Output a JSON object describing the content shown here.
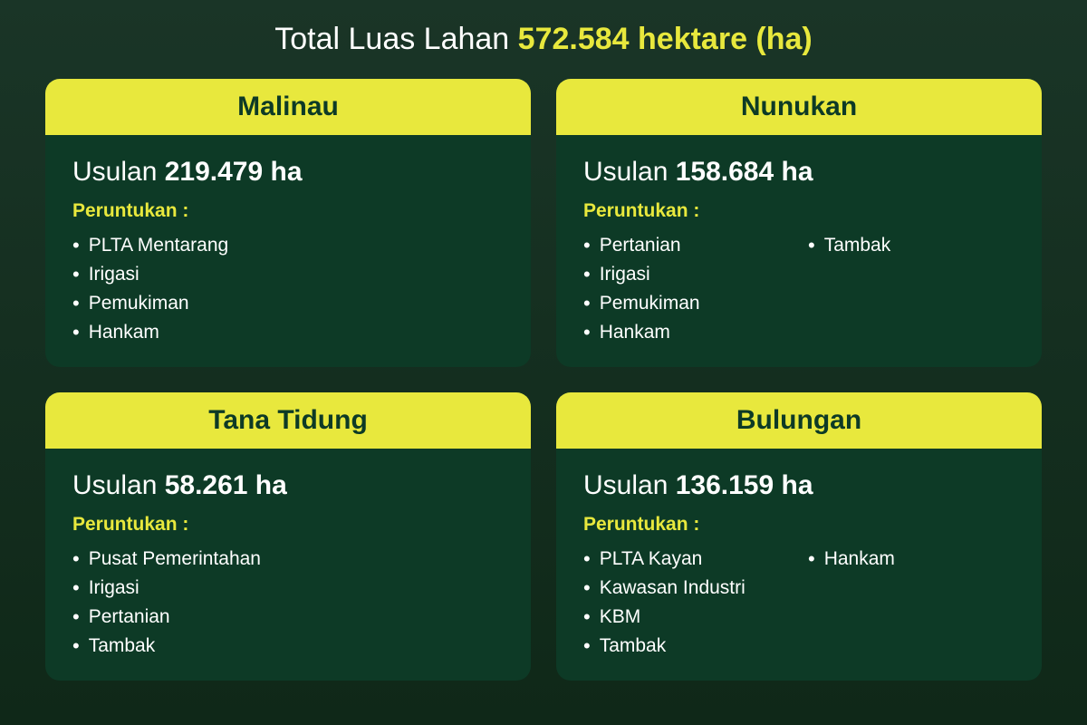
{
  "colors": {
    "background_start": "#1a3527",
    "background_end": "#0f2818",
    "card_background": "#0d3a26",
    "accent_yellow": "#e8e83d",
    "text_white": "#ffffff",
    "card_radius": 16
  },
  "typography": {
    "header_fontsize": 34,
    "card_title_fontsize": 30,
    "usulan_fontsize": 30,
    "label_fontsize": 21,
    "item_fontsize": 21
  },
  "header": {
    "prefix": "Total Luas Lahan ",
    "highlight": "572.584 hektare (ha)"
  },
  "cards": [
    {
      "title": "Malinau",
      "usulan_label": "Usulan ",
      "usulan_value": "219.479 ha",
      "peruntukan_label": "Peruntukan :",
      "two_column": false,
      "items": [
        "PLTA Mentarang",
        "Irigasi",
        "Pemukiman",
        "Hankam"
      ]
    },
    {
      "title": "Nunukan",
      "usulan_label": "Usulan ",
      "usulan_value": "158.684 ha",
      "peruntukan_label": "Peruntukan :",
      "two_column": true,
      "items": [
        "Pertanian",
        "Tambak",
        "Irigasi",
        "",
        "Pemukiman",
        "",
        "Hankam",
        ""
      ]
    },
    {
      "title": "Tana Tidung",
      "usulan_label": "Usulan ",
      "usulan_value": "58.261 ha",
      "peruntukan_label": "Peruntukan :",
      "two_column": false,
      "items": [
        "Pusat Pemerintahan",
        "Irigasi",
        "Pertanian",
        "Tambak"
      ]
    },
    {
      "title": "Bulungan",
      "usulan_label": "Usulan ",
      "usulan_value": "136.159 ha",
      "peruntukan_label": "Peruntukan :",
      "two_column": true,
      "items": [
        "PLTA Kayan",
        "Hankam",
        "Kawasan Industri",
        "",
        "KBM",
        "",
        "Tambak",
        ""
      ]
    }
  ]
}
